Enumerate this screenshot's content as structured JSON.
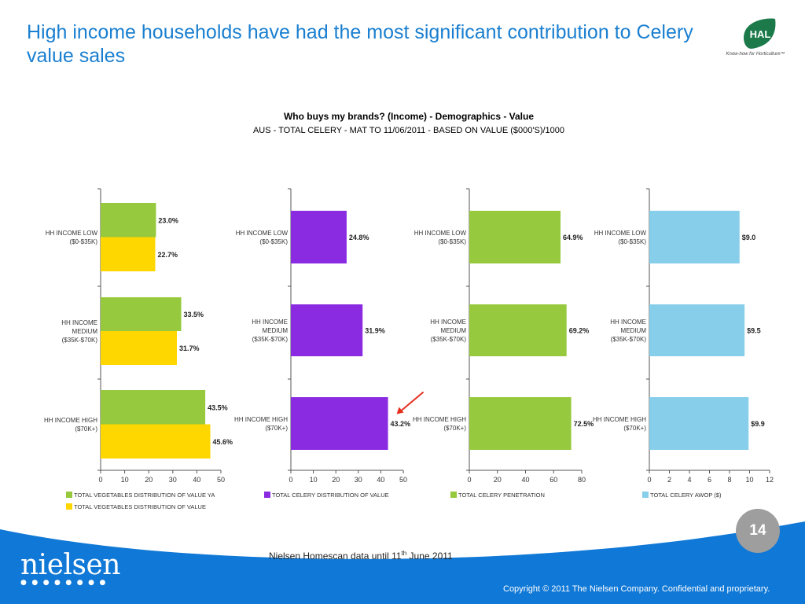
{
  "slide": {
    "title": "High income households have had the most significant contribution to Celery value sales",
    "page_number": "14",
    "source_note_prefix": "Nielsen Homescan data until 11",
    "source_note_sup": "th",
    "source_note_suffix": " June 2011",
    "copyright": "Copyright © 2011 The Nielsen Company. Confidential and proprietary.",
    "nielsen_logo": "nielsen",
    "hal_logo": {
      "text": "HAL",
      "tagline": "Know-how for Horticulture™",
      "color": "#1c7a4a"
    },
    "accent_color": "#1a7fd0",
    "footer_color": "#1078d6"
  },
  "charts_header": {
    "title": "Who buys my brands? (Income) - Demographics - Value",
    "subtitle": "AUS - TOTAL CELERY - MAT TO 11/06/2011 - BASED ON VALUE ($000'S)/1000"
  },
  "chart_data": [
    {
      "type": "bar",
      "orientation": "horizontal",
      "categories": [
        [
          "HH INCOME LOW",
          "($0-$35K)"
        ],
        [
          "HH INCOME",
          "MEDIUM",
          "($35K-$70K)"
        ],
        [
          "HH INCOME HIGH",
          "($70K+)"
        ]
      ],
      "series": [
        {
          "name": "TOTAL VEGETABLES DISTRIBUTION OF VALUE YA",
          "color": "#96c93d",
          "values": [
            23.0,
            33.5,
            43.5
          ],
          "labels": [
            "23.0%",
            "33.5%",
            "43.5%"
          ]
        },
        {
          "name": "TOTAL VEGETABLES DISTRIBUTION OF VALUE",
          "color": "#ffd700",
          "values": [
            22.7,
            31.7,
            45.6
          ],
          "labels": [
            "22.7%",
            "31.7%",
            "45.6%"
          ]
        }
      ],
      "xlim": [
        0,
        50
      ],
      "xticks": [
        0,
        10,
        20,
        30,
        40,
        50
      ]
    },
    {
      "type": "bar",
      "orientation": "horizontal",
      "categories": [
        [
          "HH INCOME LOW",
          "($0-$35K)"
        ],
        [
          "HH INCOME",
          "MEDIUM",
          "($35K-$70K)"
        ],
        [
          "HH INCOME HIGH",
          "($70K+)"
        ]
      ],
      "series": [
        {
          "name": "TOTAL CELERY DISTRIBUTION OF VALUE",
          "color": "#8a2be2",
          "values": [
            24.8,
            31.9,
            43.2
          ],
          "labels": [
            "24.8%",
            "31.9%",
            "43.2%"
          ]
        }
      ],
      "xlim": [
        0,
        50
      ],
      "xticks": [
        0,
        10,
        20,
        30,
        40,
        50
      ],
      "annotation": {
        "type": "arrow",
        "target_category": 2,
        "color": "#e53020"
      }
    },
    {
      "type": "bar",
      "orientation": "horizontal",
      "categories": [
        [
          "HH INCOME LOW",
          "($0-$35K)"
        ],
        [
          "HH INCOME",
          "MEDIUM",
          "($35K-$70K)"
        ],
        [
          "HH INCOME HIGH",
          "($70K+)"
        ]
      ],
      "series": [
        {
          "name": "TOTAL CELERY PENETRATION",
          "color": "#96c93d",
          "values": [
            64.9,
            69.2,
            72.5
          ],
          "labels": [
            "64.9%",
            "69.2%",
            "72.5%"
          ]
        }
      ],
      "xlim": [
        0,
        80
      ],
      "xticks": [
        0,
        20,
        40,
        60,
        80
      ]
    },
    {
      "type": "bar",
      "orientation": "horizontal",
      "categories": [
        [
          "HH INCOME LOW",
          "($0-$35K)"
        ],
        [
          "HH INCOME",
          "MEDIUM",
          "($35K-$70K)"
        ],
        [
          "HH INCOME HIGH",
          "($70K+)"
        ]
      ],
      "series": [
        {
          "name": "TOTAL CELERY AWOP ($)",
          "color": "#87ceeb",
          "values": [
            9.0,
            9.5,
            9.9
          ],
          "labels": [
            "$9.0",
            "$9.5",
            "$9.9"
          ]
        }
      ],
      "xlim": [
        0,
        12
      ],
      "xticks": [
        0,
        2,
        4,
        6,
        8,
        10,
        12
      ]
    }
  ]
}
